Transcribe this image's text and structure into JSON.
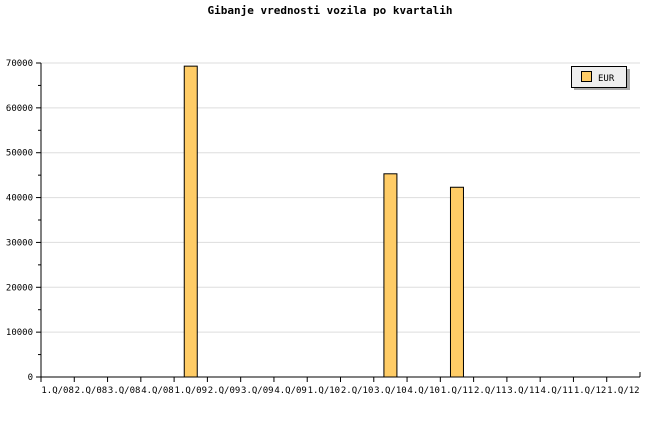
{
  "chart_data": {
    "type": "bar",
    "title": "Gibanje vrednosti vozila po kvartalih",
    "categories": [
      "1.Q/08",
      "2.Q/08",
      "3.Q/08",
      "4.Q/08",
      "1.Q/09",
      "2.Q/09",
      "3.Q/09",
      "4.Q/09",
      "1.Q/10",
      "2.Q/10",
      "3.Q/10",
      "4.Q/10",
      "1.Q/11",
      "2.Q/11",
      "3.Q/11",
      "4.Q/11",
      "1.Q/12",
      "1.Q/12"
    ],
    "series": [
      {
        "name": "EUR",
        "values": [
          0,
          0,
          0,
          0,
          69300,
          0,
          0,
          0,
          0,
          0,
          45300,
          0,
          42300,
          0,
          0,
          0,
          0,
          0
        ]
      }
    ],
    "ylim": [
      0,
      70000
    ],
    "yticks": [
      0,
      10000,
      20000,
      30000,
      40000,
      50000,
      60000,
      70000
    ],
    "grid": true,
    "legend": "top-right",
    "colors": {
      "bar": "#ffcc66",
      "grid": "#dddddd",
      "legend_bg": "#eeeeee"
    }
  }
}
